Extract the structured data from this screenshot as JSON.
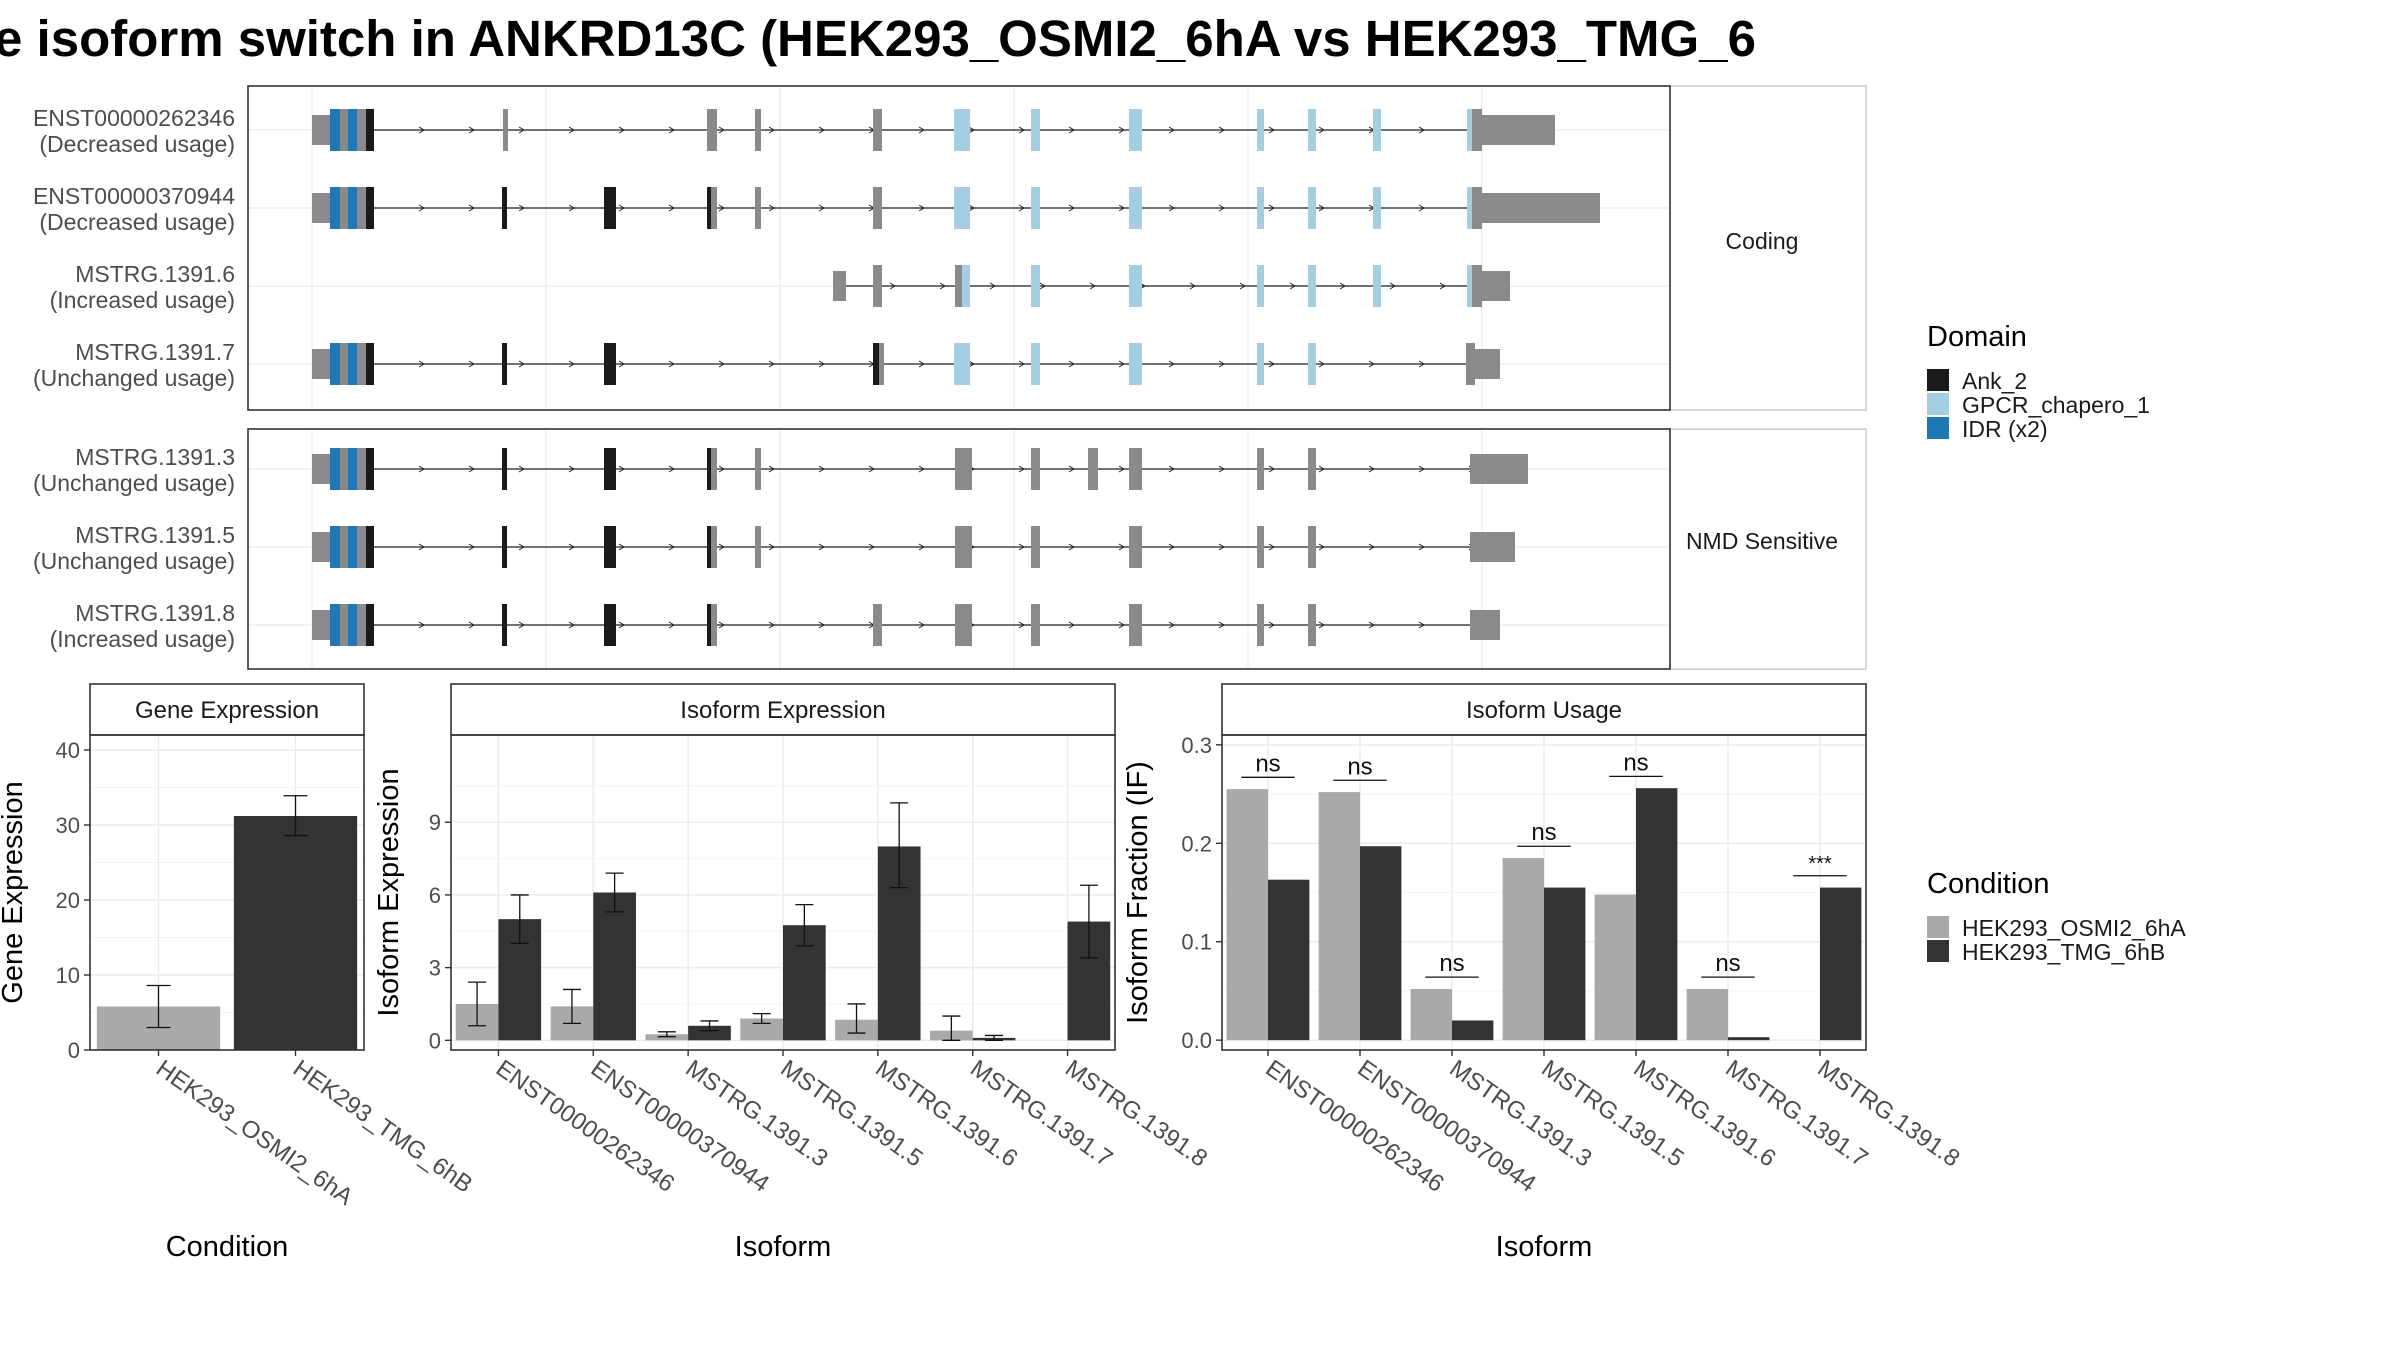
{
  "title": "e isoform switch in ANKRD13C (HEK293_OSMI2_6hA vs HEK293_TMG_6",
  "colors": {
    "utr": "#8a8a8a",
    "ank": "#1a1a1a",
    "gpcr": "#a6cee3",
    "idr": "#1f78b4",
    "cond_a": "#a9a9a9",
    "cond_b": "#333333"
  },
  "transcripts": {
    "facets": [
      "Coding",
      "NMD Sensitive"
    ],
    "rows": [
      {
        "label1": "ENST00000262346",
        "label2": "(Decreased usage)",
        "facet": 0
      },
      {
        "label1": "ENST00000370944",
        "label2": "(Decreased usage)",
        "facet": 0
      },
      {
        "label1": "MSTRG.1391.6",
        "label2": "(Increased usage)",
        "facet": 0
      },
      {
        "label1": "MSTRG.1391.7",
        "label2": "(Unchanged usage)",
        "facet": 0
      },
      {
        "label1": "MSTRG.1391.3",
        "label2": "(Unchanged usage)",
        "facet": 1
      },
      {
        "label1": "MSTRG.1391.5",
        "label2": "(Unchanged usage)",
        "facet": 1
      },
      {
        "label1": "MSTRG.1391.8",
        "label2": "(Increased usage)",
        "facet": 1
      }
    ]
  },
  "legend_domain": {
    "title": "Domain",
    "items": [
      {
        "label": "Ank_2",
        "color": "#1a1a1a"
      },
      {
        "label": "GPCR_chapero_1",
        "color": "#a6cee3"
      },
      {
        "label": "IDR (x2)",
        "color": "#1f78b4"
      }
    ]
  },
  "legend_condition": {
    "title": "Condition",
    "items": [
      {
        "label": "HEK293_OSMI2_6hA",
        "color": "#a9a9a9"
      },
      {
        "label": "HEK293_TMG_6hB",
        "color": "#333333"
      }
    ]
  },
  "chart_data": [
    {
      "type": "bar",
      "title": "Gene Expression",
      "xlabel": "Condition",
      "ylabel": "Gene Expression",
      "ylim": [
        0,
        42
      ],
      "yticks": [
        0,
        10,
        20,
        30,
        40
      ],
      "categories": [
        "HEK293_OSMI2_6hA",
        "HEK293_TMG_6hB"
      ],
      "values": [
        5.8,
        31.2
      ],
      "err_low": [
        3.0,
        28.6
      ],
      "err_high": [
        8.6,
        33.9
      ]
    },
    {
      "type": "bar",
      "title": "Isoform Expression",
      "xlabel": "Isoform",
      "ylabel": "Isoform Expression",
      "ylim": [
        -0.4,
        12.6
      ],
      "yticks": [
        0,
        3,
        6,
        9
      ],
      "categories": [
        "ENST00000262346",
        "ENST00000370944",
        "MSTRG.1391.3",
        "MSTRG.1391.5",
        "MSTRG.1391.6",
        "MSTRG.1391.7",
        "MSTRG.1391.8"
      ],
      "series": [
        {
          "name": "HEK293_OSMI2_6hA",
          "values": [
            1.5,
            1.4,
            0.25,
            0.9,
            0.85,
            0.4,
            0.0
          ],
          "err_low": [
            0.6,
            0.7,
            0.15,
            0.7,
            0.3,
            0.0,
            0.0
          ],
          "err_high": [
            2.4,
            2.1,
            0.35,
            1.1,
            1.5,
            1.0,
            0.0
          ]
        },
        {
          "name": "HEK293_TMG_6hB",
          "values": [
            5.0,
            6.1,
            0.6,
            4.75,
            8.0,
            0.1,
            4.9
          ],
          "err_low": [
            4.0,
            5.3,
            0.4,
            3.9,
            6.3,
            0.0,
            3.4
          ],
          "err_high": [
            6.0,
            6.9,
            0.8,
            5.6,
            9.8,
            0.2,
            6.4
          ]
        }
      ]
    },
    {
      "type": "bar",
      "title": "Isoform Usage",
      "xlabel": "Isoform",
      "ylabel": "Isoform Fraction (IF)",
      "ylim": [
        -0.01,
        0.31
      ],
      "yticks": [
        0.0,
        0.1,
        0.2,
        0.3
      ],
      "ytick_labels": [
        "0.0",
        "0.1",
        "0.2",
        "0.3"
      ],
      "categories": [
        "ENST00000262346",
        "ENST00000370944",
        "MSTRG.1391.3",
        "MSTRG.1391.5",
        "MSTRG.1391.6",
        "MSTRG.1391.7",
        "MSTRG.1391.8"
      ],
      "series": [
        {
          "name": "HEK293_OSMI2_6hA",
          "values": [
            0.255,
            0.252,
            0.052,
            0.185,
            0.148,
            0.052,
            0.0
          ]
        },
        {
          "name": "HEK293_TMG_6hB",
          "values": [
            0.163,
            0.197,
            0.02,
            0.155,
            0.256,
            0.003,
            0.155
          ]
        }
      ],
      "significance": [
        "ns",
        "ns",
        "ns",
        "ns",
        "ns",
        "ns",
        "***"
      ]
    }
  ]
}
